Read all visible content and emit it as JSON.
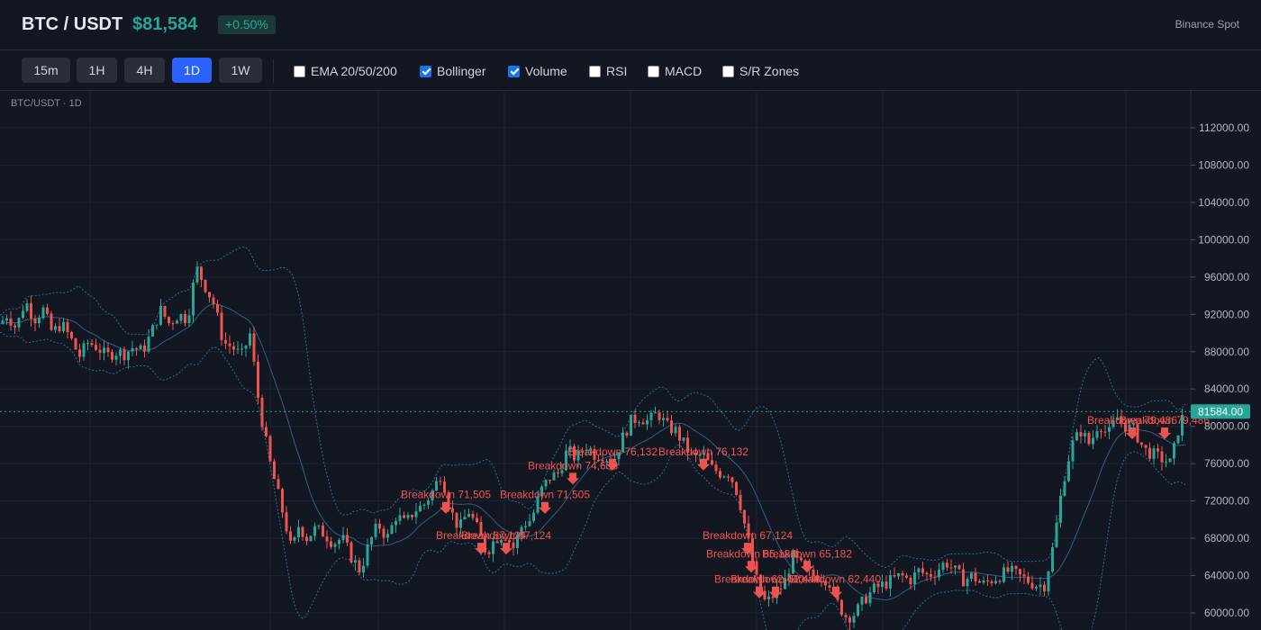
{
  "header": {
    "symbol": "BTC / USDT",
    "price": "$81,584",
    "change": "+0.50%",
    "exchange": "Binance Spot"
  },
  "toolbar": {
    "timeframes": [
      {
        "label": "15m",
        "active": false
      },
      {
        "label": "1H",
        "active": false
      },
      {
        "label": "4H",
        "active": false
      },
      {
        "label": "1D",
        "active": true
      },
      {
        "label": "1W",
        "active": false
      }
    ],
    "indicators": [
      {
        "label": "EMA 20/50/200",
        "checked": false
      },
      {
        "label": "Bollinger",
        "checked": true
      },
      {
        "label": "Volume",
        "checked": true
      },
      {
        "label": "RSI",
        "checked": false
      },
      {
        "label": "MACD",
        "checked": false
      },
      {
        "label": "S/R Zones",
        "checked": false
      }
    ]
  },
  "chart": {
    "label": "BTC/USDT · 1D",
    "last_price_label": "81584.00",
    "colors": {
      "up": "#26a69a",
      "down": "#ef5350",
      "grid": "#1f2330",
      "band": "#2c6e8f",
      "accent": "#2962ff"
    }
  },
  "chart_data": {
    "type": "candlestick",
    "y_ticks": [
      "112000.00",
      "108000.00",
      "104000.00",
      "100000.00",
      "96000.00",
      "92000.00",
      "88000.00",
      "84000.00",
      "80000.00",
      "76000.00",
      "72000.00",
      "68000.00",
      "64000.00",
      "60000.00"
    ],
    "ylim": [
      59000,
      113500
    ],
    "last_price": 81584,
    "close_path": [
      [
        0,
        91000
      ],
      [
        8,
        92000
      ],
      [
        18,
        90500
      ],
      [
        28,
        93500
      ],
      [
        38,
        91500
      ],
      [
        48,
        92500
      ],
      [
        58,
        90000
      ],
      [
        68,
        91000
      ],
      [
        78,
        89500
      ],
      [
        88,
        87500
      ],
      [
        98,
        89000
      ],
      [
        108,
        88500
      ],
      [
        118,
        87500
      ],
      [
        128,
        88000
      ],
      [
        138,
        87800
      ],
      [
        148,
        88500
      ],
      [
        158,
        88000
      ],
      [
        168,
        90000
      ],
      [
        178,
        92500
      ],
      [
        188,
        91000
      ],
      [
        198,
        92000
      ],
      [
        208,
        91500
      ],
      [
        218,
        97000
      ],
      [
        228,
        95000
      ],
      [
        238,
        93000
      ],
      [
        248,
        89000
      ],
      [
        258,
        88500
      ],
      [
        268,
        87500
      ],
      [
        278,
        90000
      ],
      [
        285,
        84000
      ],
      [
        292,
        80000
      ],
      [
        300,
        76000
      ],
      [
        308,
        73000
      ],
      [
        316,
        70000
      ],
      [
        324,
        66500
      ],
      [
        332,
        69500
      ],
      [
        340,
        68000
      ],
      [
        350,
        69000
      ],
      [
        360,
        68500
      ],
      [
        370,
        67500
      ],
      [
        380,
        68000
      ],
      [
        390,
        66000
      ],
      [
        400,
        64500
      ],
      [
        410,
        67500
      ],
      [
        420,
        69500
      ],
      [
        430,
        68000
      ],
      [
        440,
        70500
      ],
      [
        450,
        69500
      ],
      [
        460,
        71000
      ],
      [
        470,
        71500
      ],
      [
        480,
        73000
      ],
      [
        490,
        75000
      ],
      [
        500,
        71000
      ],
      [
        510,
        69000
      ],
      [
        520,
        71000
      ],
      [
        530,
        69000
      ],
      [
        540,
        66500
      ],
      [
        550,
        68000
      ],
      [
        560,
        68500
      ],
      [
        570,
        67000
      ],
      [
        580,
        69500
      ],
      [
        590,
        70000
      ],
      [
        600,
        73000
      ],
      [
        610,
        74500
      ],
      [
        620,
        75000
      ],
      [
        630,
        77500
      ],
      [
        640,
        76500
      ],
      [
        650,
        78000
      ],
      [
        660,
        77000
      ],
      [
        670,
        77000
      ],
      [
        680,
        76000
      ],
      [
        690,
        78500
      ],
      [
        700,
        80500
      ],
      [
        710,
        81000
      ],
      [
        720,
        80500
      ],
      [
        730,
        81500
      ],
      [
        740,
        80000
      ],
      [
        750,
        79500
      ],
      [
        760,
        78000
      ],
      [
        770,
        76500
      ],
      [
        780,
        77000
      ],
      [
        790,
        75500
      ],
      [
        800,
        75000
      ],
      [
        810,
        75000
      ],
      [
        820,
        72500
      ],
      [
        830,
        68000
      ],
      [
        840,
        63500
      ],
      [
        850,
        61000
      ],
      [
        860,
        62000
      ],
      [
        870,
        63000
      ],
      [
        880,
        66000
      ],
      [
        890,
        65000
      ],
      [
        900,
        64000
      ],
      [
        910,
        64000
      ],
      [
        920,
        63500
      ],
      [
        930,
        61000
      ],
      [
        940,
        59500
      ],
      [
        950,
        60000
      ],
      [
        960,
        61500
      ],
      [
        970,
        62500
      ],
      [
        980,
        63000
      ],
      [
        990,
        63500
      ],
      [
        1000,
        64000
      ],
      [
        1010,
        63500
      ],
      [
        1020,
        64500
      ],
      [
        1030,
        64000
      ],
      [
        1040,
        64500
      ],
      [
        1050,
        65500
      ],
      [
        1060,
        64500
      ],
      [
        1070,
        63500
      ],
      [
        1080,
        64000
      ],
      [
        1090,
        63000
      ],
      [
        1100,
        63500
      ],
      [
        1110,
        64000
      ],
      [
        1120,
        64500
      ],
      [
        1130,
        64000
      ],
      [
        1140,
        63500
      ],
      [
        1150,
        63000
      ],
      [
        1160,
        63000
      ],
      [
        1170,
        67500
      ],
      [
        1180,
        74000
      ],
      [
        1190,
        78000
      ],
      [
        1200,
        79500
      ],
      [
        1210,
        78000
      ],
      [
        1220,
        80500
      ],
      [
        1230,
        79000
      ],
      [
        1240,
        81000
      ],
      [
        1250,
        80000
      ],
      [
        1260,
        79500
      ],
      [
        1270,
        77500
      ],
      [
        1280,
        77000
      ],
      [
        1290,
        76500
      ],
      [
        1300,
        76000
      ],
      [
        1310,
        80500
      ],
      [
        1318,
        81584
      ]
    ],
    "annotations": [
      {
        "label": "Breakdown 71,505",
        "price": 71505,
        "x": 495
      },
      {
        "label": "Breakdown 67,124",
        "price": 67124,
        "x": 534
      },
      {
        "label": "Breakdown 67,124",
        "price": 67124,
        "x": 562
      },
      {
        "label": "Breakdown 71,505",
        "price": 71505,
        "x": 605
      },
      {
        "label": "Breakdown 74,633",
        "price": 74633,
        "x": 636
      },
      {
        "label": "Breakdown 76,132",
        "price": 76132,
        "x": 680
      },
      {
        "label": "Breakdown 76,132",
        "price": 76132,
        "x": 781
      },
      {
        "label": "Breakdown 67,124",
        "price": 67124,
        "x": 830
      },
      {
        "label": "Breakdown 65,182",
        "price": 65182,
        "x": 834
      },
      {
        "label": "Breakdown 65,182",
        "price": 65182,
        "x": 896
      },
      {
        "label": "Breakdown 62,440",
        "price": 62440,
        "x": 843
      },
      {
        "label": "Breakdown 62,440",
        "price": 62440,
        "x": 861
      },
      {
        "label": "Breakdown 62,440",
        "price": 62440,
        "x": 928
      },
      {
        "label": "Breakdown 79,486",
        "price": 79486,
        "x": 1257
      },
      {
        "label": "Breakdown 79,486",
        "price": 79486,
        "x": 1293
      }
    ]
  }
}
